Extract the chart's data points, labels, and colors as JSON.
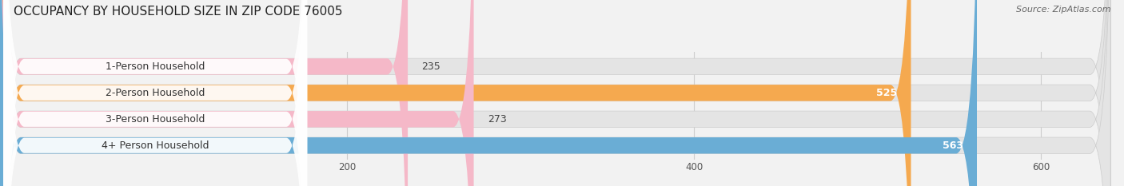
{
  "title": "OCCUPANCY BY HOUSEHOLD SIZE IN ZIP CODE 76005",
  "source": "Source: ZipAtlas.com",
  "categories": [
    "1-Person Household",
    "2-Person Household",
    "3-Person Household",
    "4+ Person Household"
  ],
  "values": [
    235,
    525,
    273,
    563
  ],
  "bar_colors": [
    "#f5b8c8",
    "#f5a94f",
    "#f5b8c8",
    "#6aadd5"
  ],
  "label_colors": [
    "#555555",
    "#ffffff",
    "#555555",
    "#ffffff"
  ],
  "value_text_colors_inside": [
    "#333333",
    "#ffffff",
    "#333333",
    "#ffffff"
  ],
  "xlim_data": [
    0,
    640
  ],
  "xticks": [
    200,
    400,
    600
  ],
  "bg_color": "#f2f2f2",
  "bar_bg_color": "#e4e4e4",
  "title_fontsize": 11,
  "source_fontsize": 8,
  "cat_fontsize": 9,
  "value_fontsize": 9,
  "bar_height": 0.62,
  "figsize": [
    14.06,
    2.33
  ],
  "large_val_threshold": 400
}
